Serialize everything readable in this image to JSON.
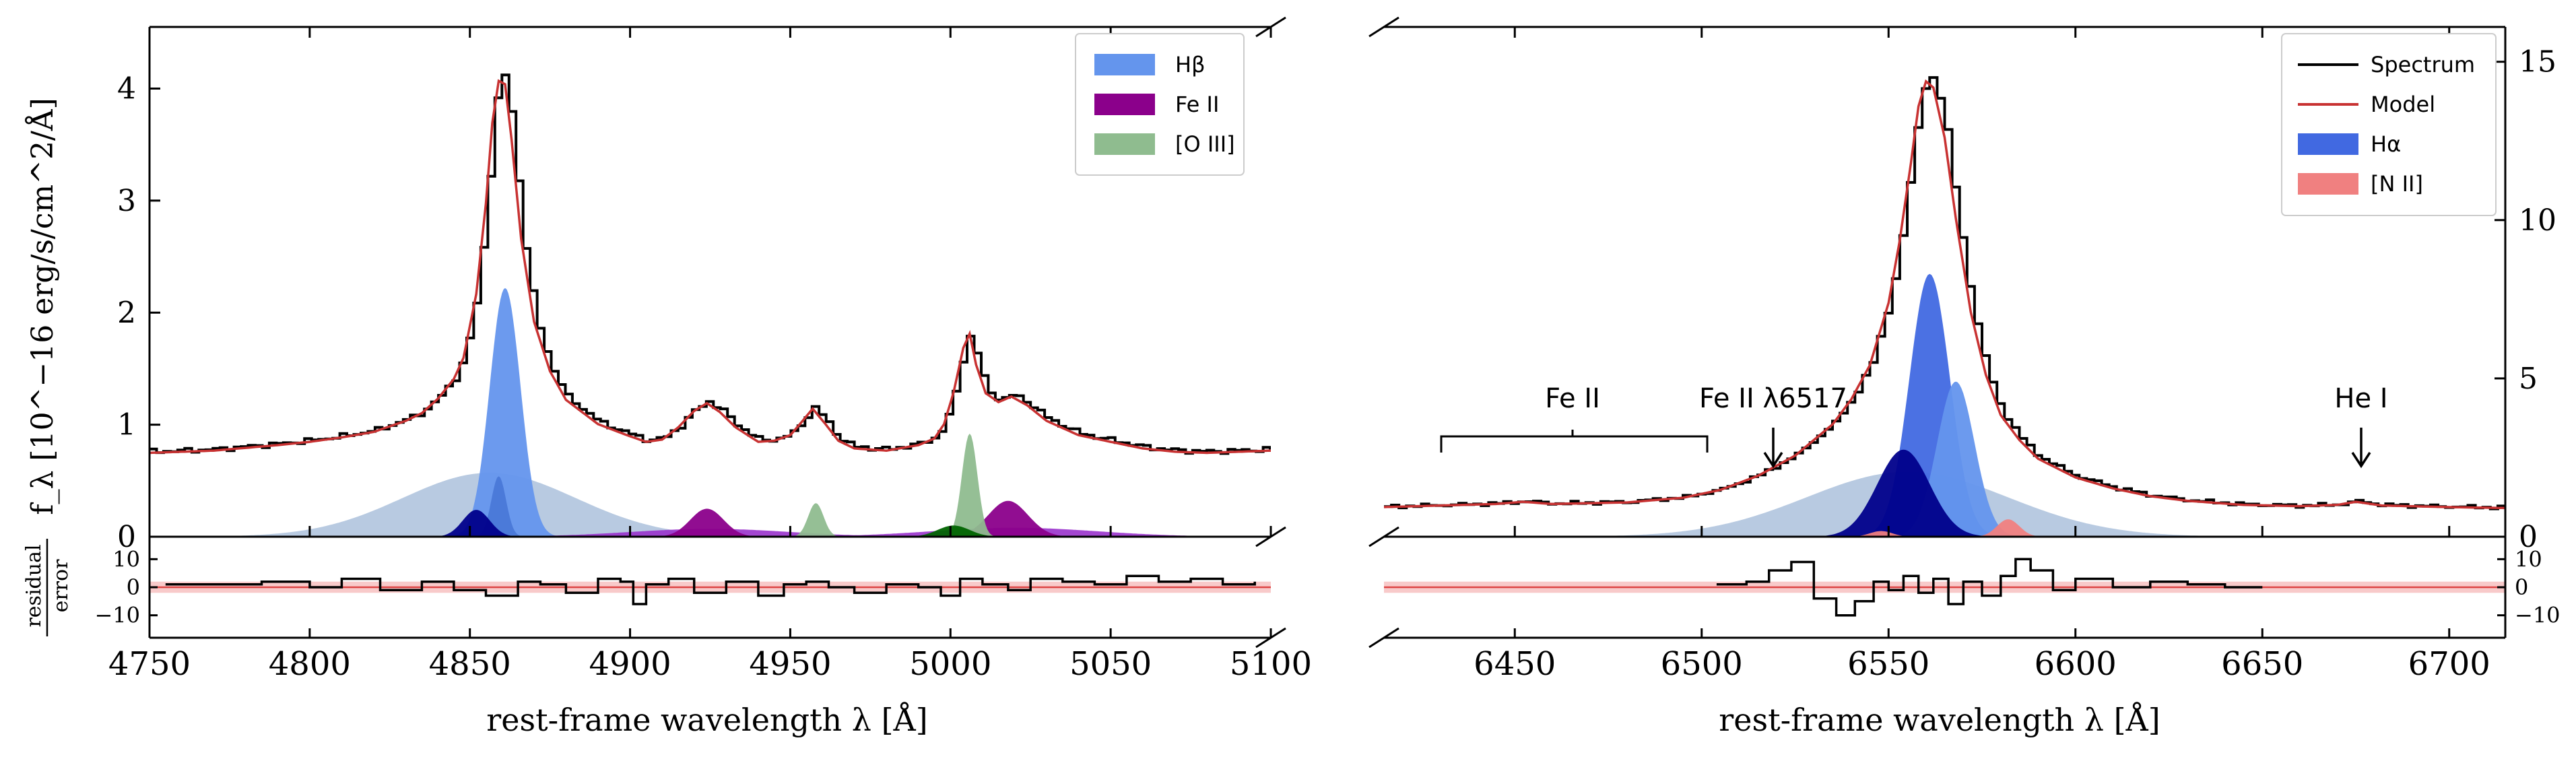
{
  "figure": {
    "ylabel": "f_λ [10^−16 erg/s/cm^2/Å]",
    "residual_label_top": "residual",
    "residual_label_bottom": "error"
  },
  "chart_data": [
    {
      "panel": "left",
      "type": "line",
      "xlabel": "rest-frame wavelength λ [Å]",
      "xlim": [
        4750,
        5100
      ],
      "ylim": [
        0,
        4.55
      ],
      "xticks": [
        4750,
        4800,
        4850,
        4900,
        4950,
        5000,
        5050,
        5100
      ],
      "yticks": [
        0,
        1,
        2,
        3,
        4
      ],
      "legend": {
        "placement": "top-right",
        "entries": [
          {
            "label": "Hβ",
            "color": "#6495ed"
          },
          {
            "label": "Fe II",
            "color": "#8b008b"
          },
          {
            "label": "[O III]",
            "color": "#8fbc8f"
          }
        ]
      },
      "continuum": 0.73,
      "components": [
        {
          "name": "Hβ broad",
          "color": "#b0c4de",
          "profile": "gaussian",
          "center": 4856,
          "amp": 0.57,
          "sigma": 27
        },
        {
          "name": "Hβ",
          "color": "#6495ed",
          "profile": "gaussian",
          "center": 4861,
          "amp": 2.22,
          "sigma": 4.8
        },
        {
          "name": "Hβ narrow",
          "color": "#4a78d8",
          "profile": "gaussian",
          "center": 4859,
          "amp": 0.54,
          "sigma": 2.3
        },
        {
          "name": "Hβ core",
          "color": "#00008b",
          "profile": "gaussian",
          "center": 4852,
          "amp": 0.24,
          "sigma": 4.2
        },
        {
          "name": "Fe II pedestal",
          "color": "#9932cc",
          "profile": "gaussian",
          "center": 4925,
          "amp": 0.07,
          "sigma": 25
        },
        {
          "name": "Fe II pedestal",
          "color": "#9932cc",
          "profile": "gaussian",
          "center": 5020,
          "amp": 0.08,
          "sigma": 26
        },
        {
          "name": "Fe II",
          "color": "#8b008b",
          "profile": "gaussian",
          "center": 4924,
          "amp": 0.25,
          "sigma": 5.2
        },
        {
          "name": "Fe II",
          "color": "#8b008b",
          "profile": "gaussian",
          "center": 5018,
          "amp": 0.32,
          "sigma": 6.2
        },
        {
          "name": "[O III] 4959",
          "color": "#8fbc8f",
          "profile": "gaussian",
          "center": 4958,
          "amp": 0.3,
          "sigma": 2.4
        },
        {
          "name": "[O III] 5007",
          "color": "#8fbc8f",
          "profile": "gaussian",
          "center": 5006,
          "amp": 0.92,
          "sigma": 2.4
        },
        {
          "name": "[O III] wing",
          "color": "#006400",
          "profile": "gaussian",
          "center": 5001,
          "amp": 0.1,
          "sigma": 5
        }
      ],
      "model": {
        "label": "Model",
        "color": "#c83232"
      },
      "spectrum": {
        "label": "Spectrum",
        "color": "#000000",
        "x": [
          4750,
          4770,
          4790,
          4800,
          4810,
          4820,
          4830,
          4835,
          4840,
          4845,
          4848,
          4852,
          4855,
          4857,
          4859,
          4861,
          4863,
          4866,
          4870,
          4875,
          4880,
          4890,
          4900,
          4905,
          4910,
          4915,
          4920,
          4924,
          4928,
          4933,
          4940,
          4945,
          4950,
          4953,
          4957,
          4961,
          4965,
          4970,
          4980,
          4990,
          4995,
          4998,
          5001,
          5004,
          5006,
          5008,
          5011,
          5015,
          5019,
          5024,
          5030,
          5040,
          5050,
          5060,
          5070,
          5080,
          5090,
          5100
        ],
        "y": [
          0.76,
          0.78,
          0.83,
          0.86,
          0.9,
          0.95,
          1.05,
          1.12,
          1.25,
          1.43,
          1.62,
          2.2,
          3.02,
          3.75,
          4.13,
          4.1,
          3.6,
          2.7,
          1.95,
          1.5,
          1.24,
          1.02,
          0.91,
          0.86,
          0.88,
          0.99,
          1.14,
          1.21,
          1.13,
          0.99,
          0.86,
          0.87,
          0.92,
          1.02,
          1.16,
          1.02,
          0.87,
          0.8,
          0.78,
          0.83,
          0.89,
          1.02,
          1.31,
          1.71,
          1.84,
          1.56,
          1.3,
          1.22,
          1.27,
          1.19,
          1.05,
          0.92,
          0.86,
          0.8,
          0.77,
          0.76,
          0.77,
          0.78
        ]
      }
    },
    {
      "panel": "left-residual",
      "type": "line",
      "xlim": [
        4750,
        5100
      ],
      "ylim": [
        -18,
        18
      ],
      "yticks": [
        -10,
        0,
        10
      ],
      "band": [
        -2,
        2
      ],
      "x": [
        4755,
        4770,
        4785,
        4800,
        4810,
        4822,
        4835,
        4845,
        4855,
        4865,
        4872,
        4880,
        4890,
        4897,
        4901,
        4905,
        4912,
        4920,
        4930,
        4940,
        4948,
        4955,
        4962,
        4970,
        4980,
        4990,
        4997,
        5003,
        5010,
        5018,
        5025,
        5035,
        5045,
        5055,
        5065,
        5075,
        5085,
        5095
      ],
      "y": [
        1,
        1,
        2,
        0,
        3,
        -1,
        2,
        -1,
        -3,
        2,
        1,
        -2,
        3,
        2,
        -6,
        1,
        3,
        -2,
        2,
        -3,
        1,
        2,
        0,
        -2,
        1,
        0,
        -3,
        3,
        1,
        -1,
        3,
        2,
        1,
        4,
        2,
        3,
        1,
        2
      ]
    },
    {
      "panel": "right",
      "type": "line",
      "xlabel": "rest-frame wavelength λ [Å]",
      "xlim": [
        6415,
        6715
      ],
      "ylim": [
        0,
        16.1
      ],
      "xticks": [
        6450,
        6500,
        6550,
        6600,
        6650,
        6700
      ],
      "yticks": [
        0,
        5,
        10,
        15
      ],
      "legend": {
        "placement": "top-right",
        "entries": [
          {
            "label": "Spectrum",
            "color": "#000000",
            "kind": "line"
          },
          {
            "label": "Model",
            "color": "#c83232",
            "kind": "line"
          },
          {
            "label": "Hα",
            "color": "#4169e1",
            "kind": "patch"
          },
          {
            "label": "[N II]",
            "color": "#f08080",
            "kind": "patch"
          }
        ]
      },
      "annotations": [
        {
          "text": "Fe II",
          "kind": "bracket",
          "x": [
            6428,
            6500
          ],
          "y": 2.2
        },
        {
          "text": "Fe II λ6517",
          "kind": "arrow",
          "x": 6517,
          "y": 2.2
        },
        {
          "text": "He I",
          "kind": "arrow",
          "x": 6675,
          "y": 2.2
        }
      ],
      "continuum": 1.0,
      "components": [
        {
          "name": "Hα broad",
          "color": "#b0c4de",
          "profile": "gaussian",
          "center": 6555,
          "amp": 2.05,
          "sigma": 27
        },
        {
          "name": "Hα",
          "color": "#4169e1",
          "profile": "gaussian",
          "center": 6561,
          "amp": 8.3,
          "sigma": 5.4
        },
        {
          "name": "Hα red",
          "color": "#6495ed",
          "profile": "gaussian",
          "center": 6568,
          "amp": 4.9,
          "sigma": 5
        },
        {
          "name": "Hα blue",
          "color": "#00008b",
          "profile": "gaussian",
          "center": 6554,
          "amp": 2.75,
          "sigma": 7
        },
        {
          "name": "[N II] 6548",
          "color": "#f08080",
          "profile": "gaussian",
          "center": 6548,
          "amp": 0.18,
          "sigma": 3
        },
        {
          "name": "[N II] 6583",
          "color": "#f08080",
          "profile": "gaussian",
          "center": 6582,
          "amp": 0.55,
          "sigma": 3
        }
      ],
      "model": {
        "label": "Model",
        "color": "#c83232"
      },
      "spectrum": {
        "label": "Spectrum",
        "color": "#000000",
        "x": [
          6415,
          6430,
          6445,
          6452,
          6460,
          6480,
          6495,
          6505,
          6515,
          6525,
          6535,
          6540,
          6545,
          6550,
          6553,
          6556,
          6558,
          6560,
          6562,
          6565,
          6568,
          6572,
          6576,
          6580,
          6585,
          6590,
          6600,
          6610,
          6620,
          6630,
          6645,
          6660,
          6670,
          6675,
          6682,
          6700,
          6715
        ],
        "y": [
          0.95,
          1.0,
          1.05,
          1.12,
          1.05,
          1.1,
          1.25,
          1.5,
          1.95,
          2.6,
          3.6,
          4.4,
          5.5,
          7.5,
          9.5,
          12.0,
          13.8,
          14.6,
          14.4,
          12.8,
          10.2,
          7.2,
          5.2,
          3.9,
          3.1,
          2.5,
          1.9,
          1.55,
          1.3,
          1.15,
          1.02,
          0.98,
          1.02,
          1.12,
          1.0,
          0.95,
          0.92
        ]
      }
    },
    {
      "panel": "right-residual",
      "type": "line",
      "xlim": [
        6415,
        6715
      ],
      "ylim": [
        -18,
        18
      ],
      "yticks": [
        -10,
        0,
        10
      ],
      "band": [
        -2,
        2
      ],
      "x": [
        6504,
        6512,
        6518,
        6524,
        6530,
        6536,
        6541,
        6546,
        6550,
        6554,
        6558,
        6562,
        6566,
        6570,
        6575,
        6580,
        6584,
        6588,
        6594,
        6600,
        6610,
        6620,
        6630,
        6640,
        6650
      ],
      "y": [
        1,
        2,
        6,
        9,
        -4,
        -10,
        -5,
        2,
        -1,
        4,
        -2,
        3,
        -6,
        2,
        -3,
        4,
        10,
        6,
        -1,
        3,
        0,
        2,
        1,
        0,
        0
      ]
    }
  ]
}
